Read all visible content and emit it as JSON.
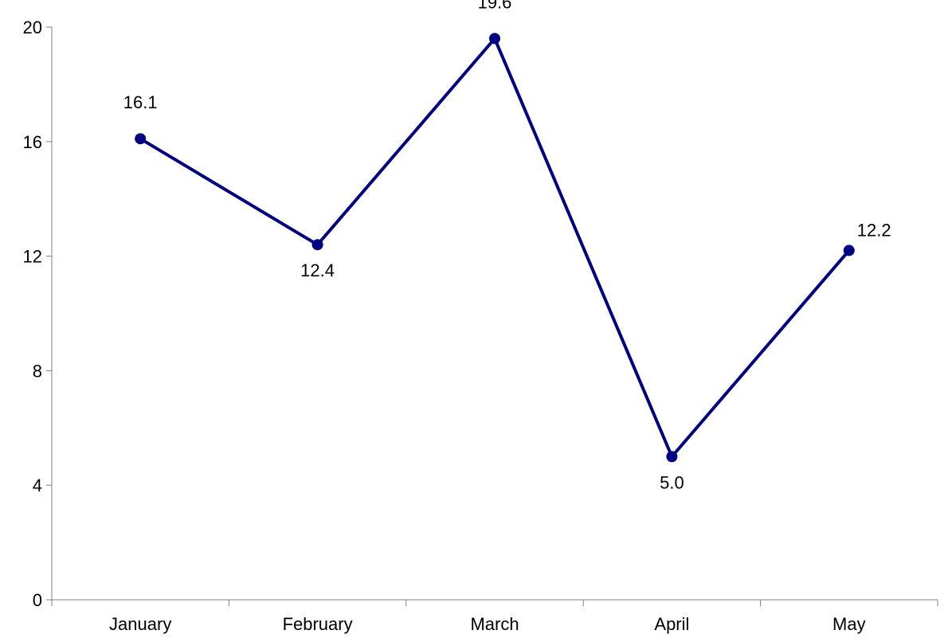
{
  "chart_data": {
    "type": "line",
    "categories": [
      "January",
      "February",
      "March",
      "April",
      "May"
    ],
    "series": [
      {
        "values": [
          16.1,
          12.4,
          19.6,
          5.0,
          12.2
        ],
        "data_labels": [
          "16.1",
          "12.4",
          "19.6",
          "5.0",
          "12.2"
        ],
        "color": "#000080"
      }
    ],
    "title": "",
    "xlabel": "",
    "ylabel": "",
    "ylim": [
      0,
      20
    ],
    "yticks": [
      0,
      4,
      8,
      12,
      16,
      20
    ],
    "ytick_labels": [
      "0",
      "4",
      "8",
      "12",
      "16",
      "20"
    ],
    "grid": false,
    "legend": "none",
    "axis_color": "#808080"
  }
}
